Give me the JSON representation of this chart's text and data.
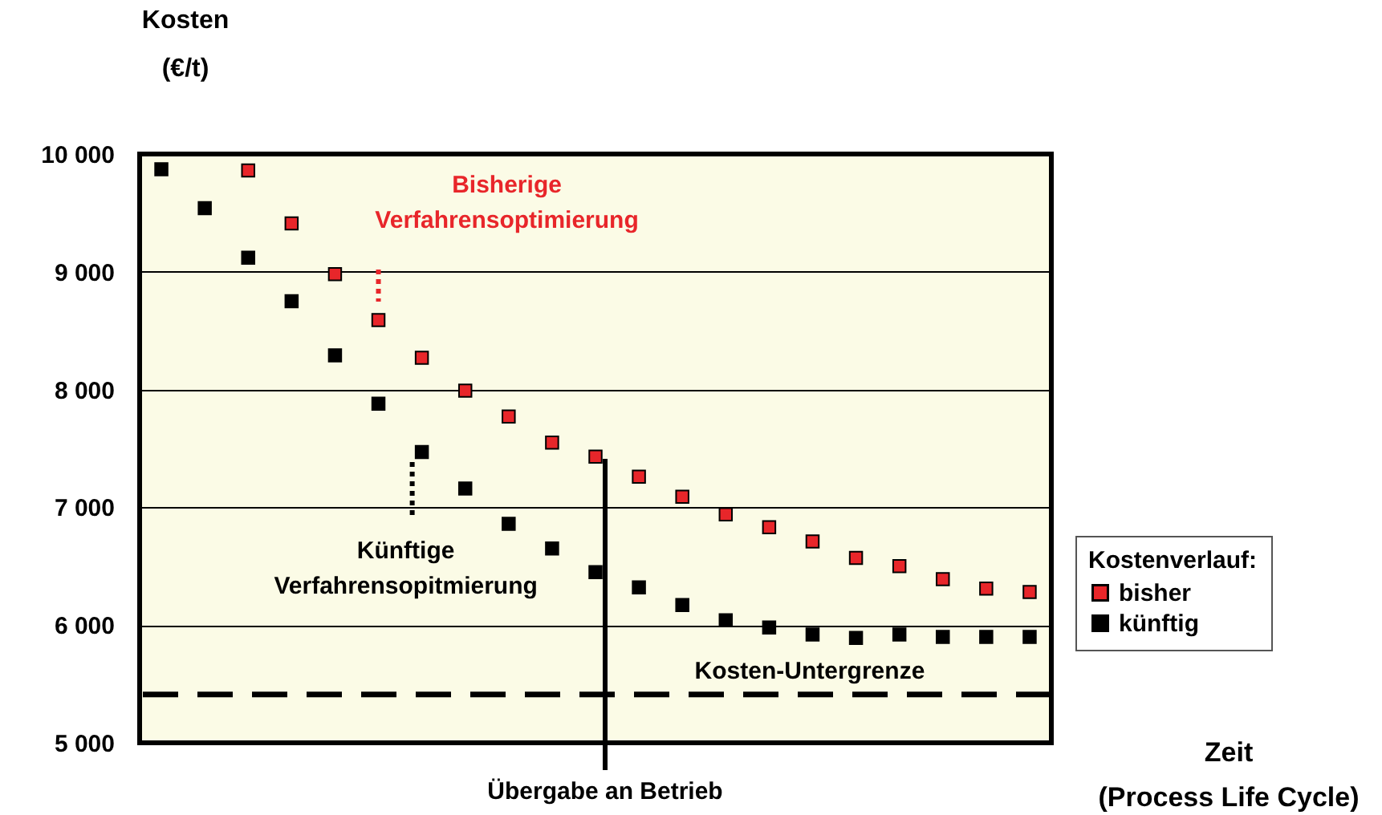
{
  "chart_data": {
    "type": "scatter",
    "ylabel": "Kosten (€/t)",
    "xlabel": "Zeit (Process Life Cycle)",
    "legend_title": "Kostenverlauf:",
    "categories": [
      null,
      null,
      null,
      null,
      null,
      null,
      null,
      null,
      null,
      null,
      null,
      null,
      null,
      null,
      null,
      null,
      null,
      null,
      null,
      null,
      null
    ],
    "series": [
      {
        "name": "bisher",
        "color": "#e8262a",
        "values": [
          null,
          null,
          9860,
          9410,
          8980,
          8590,
          8270,
          7990,
          7770,
          7550,
          7430,
          7260,
          7090,
          6940,
          6830,
          6710,
          6570,
          6500,
          6390,
          6310,
          6280
        ]
      },
      {
        "name": "künftig",
        "color": "#000000",
        "values": [
          9870,
          9540,
          9120,
          8750,
          8290,
          7880,
          7470,
          7160,
          6860,
          6650,
          6450,
          6320,
          6170,
          6040,
          5980,
          5920,
          5890,
          5920,
          5900,
          5900,
          5900
        ]
      }
    ],
    "ylim": [
      5000,
      10000
    ],
    "yticks": [
      {
        "value": 5000,
        "label": "5 000"
      },
      {
        "value": 6000,
        "label": "6 000"
      },
      {
        "value": 7000,
        "label": "7 000"
      },
      {
        "value": 8000,
        "label": "8 000"
      },
      {
        "value": 9000,
        "label": "9 000"
      },
      {
        "value": 10000,
        "label": "10 000"
      }
    ],
    "ref_lines": [
      {
        "axis": "y",
        "value": 5410,
        "label": "Kosten-Untergrenze",
        "line_style": "dashed"
      }
    ],
    "annotations": [
      "Bisherige Verfahrensoptimierung",
      "Künftige Verfahrensopitmierung",
      "Übergabe an Betrieb"
    ],
    "grid": "y",
    "legend": "right",
    "tick_labels": "y",
    "marker": "square"
  }
}
